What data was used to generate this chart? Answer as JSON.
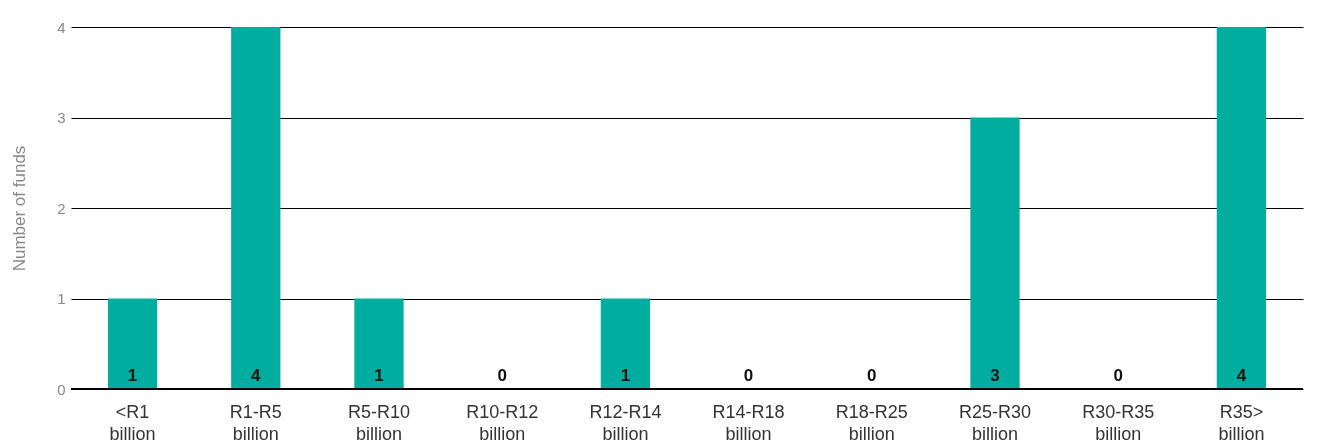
{
  "chart_data": {
    "type": "bar",
    "ylabel": "Number of funds",
    "categories": [
      "<R1 billion",
      "R1-R5 billion",
      "R5-R10 billion",
      "R10-R12 billion",
      "R12-R14 billion",
      "R14-R18 billion",
      "R18-R25 billion",
      "R25-R30 billion",
      "R30-R35 billion",
      "R35> billion"
    ],
    "values": [
      1,
      4,
      1,
      0,
      1,
      0,
      0,
      3,
      0,
      4
    ],
    "color": "#00ad9f",
    "ylim": [
      0,
      4
    ],
    "yticks": [
      0,
      1,
      2,
      3,
      4
    ],
    "grid": "y",
    "data_labels": true
  }
}
